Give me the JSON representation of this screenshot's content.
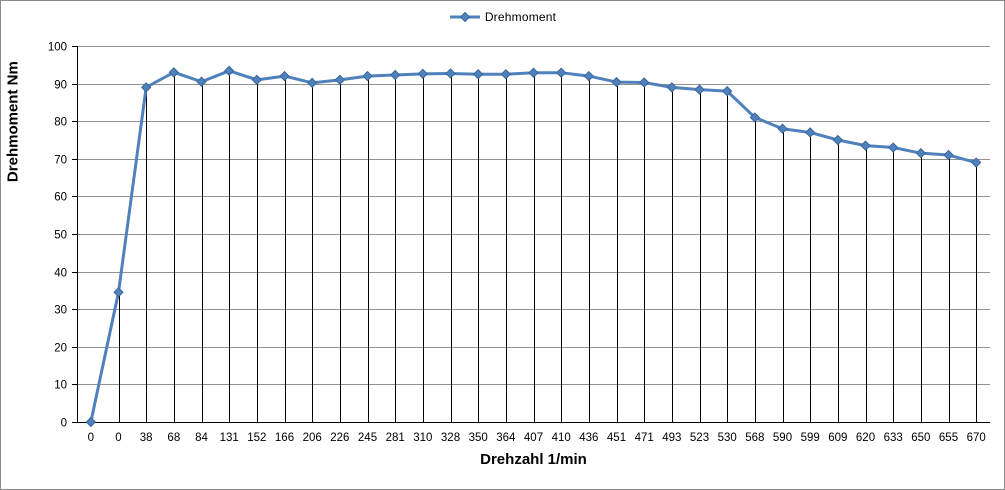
{
  "chart_data": {
    "type": "line",
    "title": "",
    "xlabel": "Drehzahl 1/min",
    "ylabel": "Drehmoment Nm",
    "legend": {
      "label": "Drehmoment",
      "position": "top-center"
    },
    "categories": [
      "0",
      "0",
      "38",
      "68",
      "84",
      "131",
      "152",
      "166",
      "206",
      "226",
      "245",
      "281",
      "310",
      "328",
      "350",
      "364",
      "407",
      "410",
      "436",
      "451",
      "471",
      "493",
      "523",
      "530",
      "568",
      "590",
      "599",
      "609",
      "620",
      "633",
      "650",
      "655",
      "670"
    ],
    "series": [
      {
        "name": "Drehmoment",
        "values": [
          0,
          34.5,
          89,
          93,
          90.5,
          93.4,
          91,
          92,
          90.2,
          91,
          92,
          92.3,
          92.6,
          92.7,
          92.5,
          92.5,
          92.9,
          92.9,
          92,
          90.4,
          90.3,
          89,
          88.4,
          88,
          81,
          78,
          77,
          75,
          73.5,
          73,
          71.5,
          71,
          69
        ]
      }
    ],
    "ylim": [
      0,
      100
    ],
    "ytick_step": 10,
    "grid": "horizontal",
    "drop_lines": true,
    "marker": "diamond",
    "legend_border": false,
    "colors": {
      "series": "#4F81BD",
      "marker_fill": "#4F81BD",
      "marker_edge": "#3A679B",
      "gridline": "#919191",
      "drop_line": "#000000",
      "axis": "#000000",
      "text": "#000000",
      "background": "#FFFFFF",
      "frame_border": "#8C8C8C"
    }
  }
}
